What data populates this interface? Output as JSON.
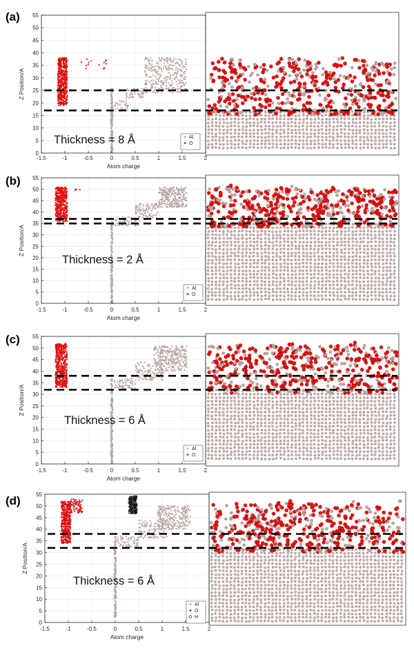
{
  "colors": {
    "aluminum": "#b9a6a3",
    "oxygen": "#e01010",
    "hydrogen": "#111111",
    "dashed_line": "#000000",
    "axis": "#222222",
    "grid": "#e6e6e6"
  },
  "panels": [
    {
      "label": "(a)",
      "thickness_text": "Thickness = 8 Å",
      "legend": [
        "Al",
        "O"
      ],
      "upper_line_z": 25,
      "lower_line_z": 17
    },
    {
      "label": "(b)",
      "thickness_text": "Thickness = 2 Å",
      "legend": [
        "Al",
        "O"
      ],
      "upper_line_z": 37,
      "lower_line_z": 35
    },
    {
      "label": "(c)",
      "thickness_text": "Thickness = 6 Å",
      "legend": [
        "Al",
        "O"
      ],
      "upper_line_z": 38,
      "lower_line_z": 32
    },
    {
      "label": "(d)",
      "thickness_text": "Thickness = 6 Å",
      "legend": [
        "Al",
        "O",
        "H"
      ],
      "upper_line_z": 38,
      "lower_line_z": 32
    }
  ],
  "chart_data": [
    {
      "type": "scatter",
      "panel": "(a)",
      "xlabel": "Atom charge",
      "ylabel": "Z Position/A",
      "xlim": [
        -1.5,
        2
      ],
      "ylim": [
        0,
        55
      ],
      "xticks": [
        "-1.5",
        "-1",
        "-0.5",
        "0",
        "0.5",
        "1",
        "1.5",
        "2"
      ],
      "yticks": [
        "0",
        "5",
        "10",
        "15",
        "20",
        "25",
        "30",
        "35",
        "40",
        "45",
        "50",
        "55"
      ],
      "series": [
        {
          "name": "O",
          "clusters": [
            {
              "x": [
                -1.15,
                -0.95
              ],
              "y": [
                19,
                38
              ],
              "n": 500
            },
            {
              "x": [
                -0.65,
                -0.05
              ],
              "y": [
                33,
                38
              ],
              "n": 14
            }
          ]
        },
        {
          "name": "Al",
          "clusters": [
            {
              "x": [
                -0.02,
                0.02
              ],
              "y": [
                0,
                26
              ],
              "n": 170
            },
            {
              "x": [
                0.05,
                0.35
              ],
              "y": [
                17,
                21
              ],
              "n": 30
            },
            {
              "x": [
                0.3,
                0.7
              ],
              "y": [
                22,
                26
              ],
              "n": 60
            },
            {
              "x": [
                0.7,
                1.6
              ],
              "y": [
                24,
                38
              ],
              "n": 330
            }
          ]
        }
      ],
      "dashed_lines_z": [
        25,
        17
      ]
    },
    {
      "type": "scatter",
      "panel": "(b)",
      "xlabel": "Atom charge",
      "ylabel": "Z Position/A",
      "xlim": [
        -1.5,
        2
      ],
      "ylim": [
        0,
        55
      ],
      "xticks": [
        "-1.5",
        "-1",
        "-0.5",
        "0",
        "0.5",
        "1",
        "1.5",
        "2"
      ],
      "yticks": [
        "0",
        "5",
        "10",
        "15",
        "20",
        "25",
        "30",
        "35",
        "40",
        "45",
        "50",
        "55"
      ],
      "series": [
        {
          "name": "O",
          "clusters": [
            {
              "x": [
                -1.2,
                -0.95
              ],
              "y": [
                36,
                51
              ],
              "n": 450
            },
            {
              "x": [
                -0.8,
                -0.6
              ],
              "y": [
                49,
                51
              ],
              "n": 4
            }
          ]
        },
        {
          "name": "Al",
          "clusters": [
            {
              "x": [
                -0.02,
                0.02
              ],
              "y": [
                0,
                36
              ],
              "n": 190
            },
            {
              "x": [
                0.05,
                0.6
              ],
              "y": [
                34,
                38
              ],
              "n": 70
            },
            {
              "x": [
                0.5,
                1.0
              ],
              "y": [
                37,
                44
              ],
              "n": 100
            },
            {
              "x": [
                1.0,
                1.6
              ],
              "y": [
                42,
                51
              ],
              "n": 260
            }
          ]
        }
      ],
      "dashed_lines_z": [
        37,
        35
      ]
    },
    {
      "type": "scatter",
      "panel": "(c)",
      "xlabel": "Atom charge",
      "ylabel": "Z Position/A",
      "xlim": [
        -1.5,
        2
      ],
      "ylim": [
        0,
        55
      ],
      "xticks": [
        "-1.5",
        "-1",
        "-0.5",
        "0",
        "0.5",
        "1",
        "1.5",
        "2"
      ],
      "yticks": [
        "0",
        "5",
        "10",
        "15",
        "20",
        "25",
        "30",
        "35",
        "40",
        "45",
        "50",
        "55"
      ],
      "series": [
        {
          "name": "O",
          "clusters": [
            {
              "x": [
                -1.2,
                -0.95
              ],
              "y": [
                33,
                52
              ],
              "n": 500
            }
          ]
        },
        {
          "name": "Al",
          "clusters": [
            {
              "x": [
                -0.02,
                0.02
              ],
              "y": [
                0,
                37
              ],
              "n": 190
            },
            {
              "x": [
                0.05,
                0.5
              ],
              "y": [
                32,
                37
              ],
              "n": 70
            },
            {
              "x": [
                0.5,
                1.1
              ],
              "y": [
                36,
                44
              ],
              "n": 120
            },
            {
              "x": [
                0.9,
                1.6
              ],
              "y": [
                40,
                51
              ],
              "n": 280
            }
          ]
        }
      ],
      "dashed_lines_z": [
        38,
        32
      ]
    },
    {
      "type": "scatter",
      "panel": "(d)",
      "xlabel": "Atom charge",
      "ylabel": "Z Position/A",
      "xlim": [
        -1.5,
        2
      ],
      "ylim": [
        0,
        55
      ],
      "xticks": [
        "-1.5",
        "-1",
        "-0.5",
        "0",
        "0.5",
        "1",
        "1.5",
        "2"
      ],
      "yticks": [
        "0",
        "5",
        "10",
        "15",
        "20",
        "25",
        "30",
        "35",
        "40",
        "45",
        "50",
        "55"
      ],
      "series": [
        {
          "name": "O",
          "clusters": [
            {
              "x": [
                -1.15,
                -0.95
              ],
              "y": [
                34,
                52
              ],
              "n": 420
            },
            {
              "x": [
                -0.95,
                -0.7
              ],
              "y": [
                47,
                53
              ],
              "n": 70
            }
          ]
        },
        {
          "name": "H",
          "clusters": [
            {
              "x": [
                0.3,
                0.45
              ],
              "y": [
                47,
                54
              ],
              "n": 90
            }
          ]
        },
        {
          "name": "Al",
          "clusters": [
            {
              "x": [
                -0.02,
                0.02
              ],
              "y": [
                2,
                37
              ],
              "n": 190
            },
            {
              "x": [
                0.05,
                0.5
              ],
              "y": [
                32,
                37
              ],
              "n": 60
            },
            {
              "x": [
                0.5,
                1.1
              ],
              "y": [
                36,
                44
              ],
              "n": 120
            },
            {
              "x": [
                0.9,
                1.6
              ],
              "y": [
                40,
                50
              ],
              "n": 260
            }
          ]
        }
      ],
      "dashed_lines_z": [
        38,
        32
      ]
    }
  ]
}
